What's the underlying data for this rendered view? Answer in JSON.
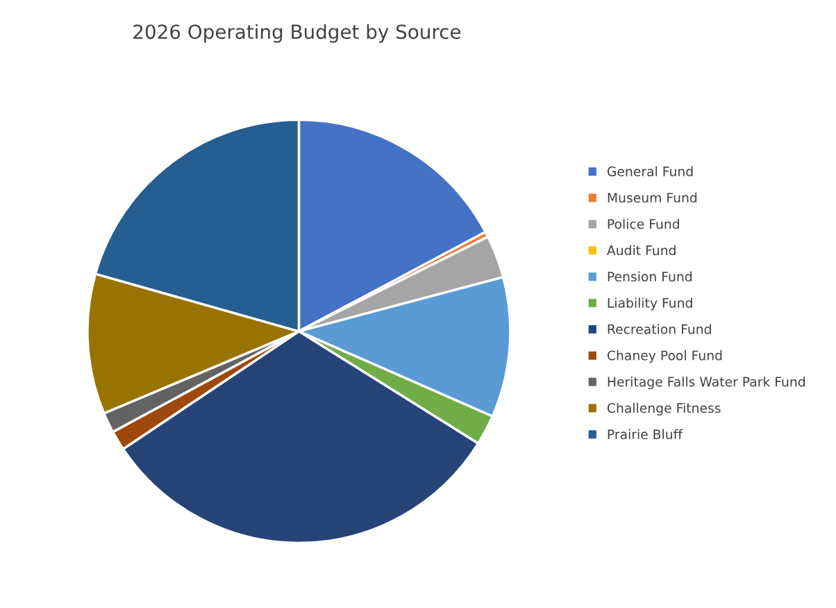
{
  "chart_data": {
    "type": "pie",
    "title": "2026 Operating Budget by Source",
    "categories": [
      "General Fund",
      "Museum Fund",
      "Police Fund",
      "Audit Fund",
      "Pension Fund",
      "Liability Fund",
      "Recreation Fund",
      "Chaney Pool Fund",
      "Heritage Falls Water Park Fund",
      "Challenge Fitness",
      "Prairie Bluff"
    ],
    "values": [
      17.2,
      0.4,
      3.25,
      null,
      10.7,
      2.3,
      31.7,
      1.5,
      1.55,
      10.7,
      20.6
    ],
    "colors": [
      "#4472c4",
      "#ed7d31",
      "#a5a5a5",
      "#ffc000",
      "#5b9bd5",
      "#70ad47",
      "#264478",
      "#9e480e",
      "#636363",
      "#997300",
      "#255e91"
    ],
    "legend": "right"
  }
}
